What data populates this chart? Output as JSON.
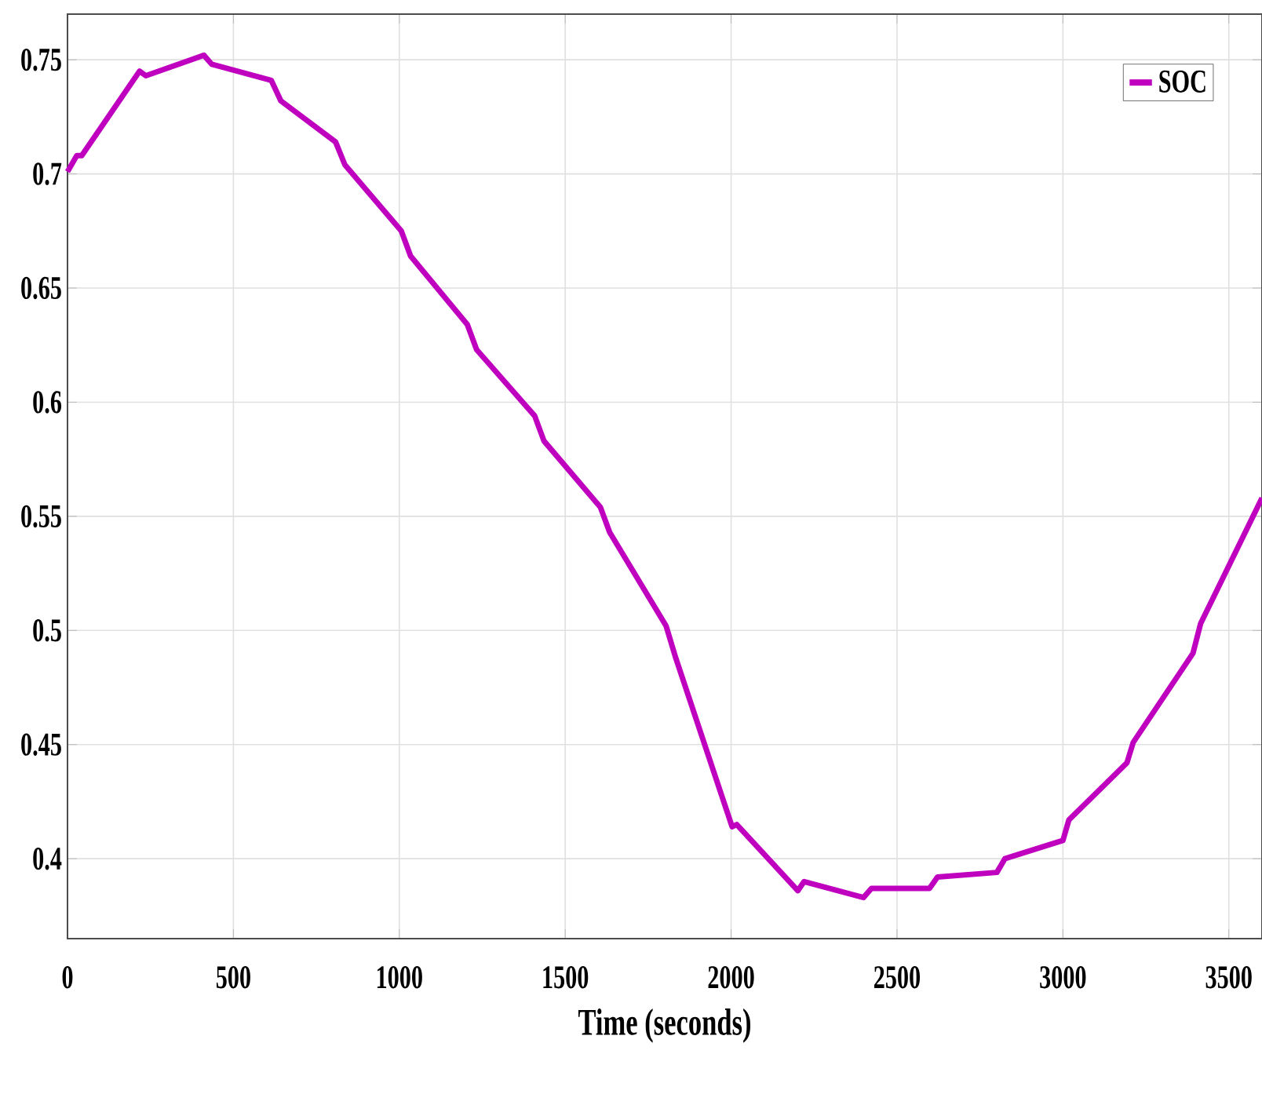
{
  "chart_data": {
    "type": "line",
    "xlabel": "Time (seconds)",
    "xlim": [
      0,
      3600
    ],
    "xticks": [
      0,
      500,
      1000,
      1500,
      2000,
      2500,
      3000,
      3500
    ],
    "ylim": [
      0.365,
      0.77
    ],
    "yticks": [
      0.4,
      0.45,
      0.5,
      0.55,
      0.6,
      0.65,
      0.7,
      0.75
    ],
    "grid": true,
    "legend": "top right",
    "marker": "none",
    "line_style": "solid",
    "series": [
      {
        "name": "SOC",
        "color": "#bf00bf",
        "x": [
          0,
          28,
          43,
          217,
          236,
          411,
          435,
          614,
          643,
          808,
          836,
          1006,
          1034,
          1205,
          1233,
          1408,
          1436,
          1606,
          1634,
          1804,
          1833,
          2003,
          2017,
          2201,
          2220,
          2399,
          2423,
          2598,
          2622,
          2801,
          2825,
          3000,
          3018,
          3193,
          3212,
          3392,
          3415,
          3600
        ],
        "values": [
          0.701,
          0.708,
          0.708,
          0.745,
          0.743,
          0.752,
          0.748,
          0.741,
          0.732,
          0.714,
          0.704,
          0.675,
          0.664,
          0.634,
          0.623,
          0.594,
          0.583,
          0.554,
          0.543,
          0.502,
          0.488,
          0.414,
          0.415,
          0.386,
          0.39,
          0.383,
          0.387,
          0.387,
          0.392,
          0.394,
          0.4,
          0.408,
          0.417,
          0.442,
          0.451,
          0.49,
          0.503,
          0.558
        ]
      }
    ]
  }
}
